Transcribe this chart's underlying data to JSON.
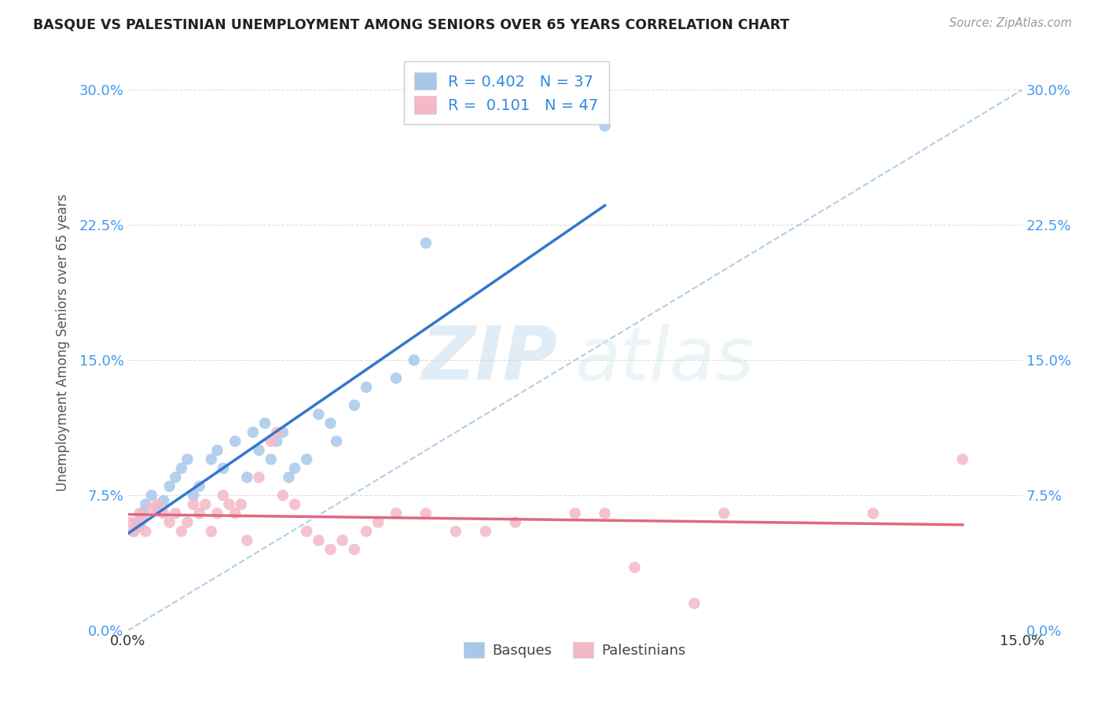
{
  "title": "BASQUE VS PALESTINIAN UNEMPLOYMENT AMONG SENIORS OVER 65 YEARS CORRELATION CHART",
  "source": "Source: ZipAtlas.com",
  "ylabel": "Unemployment Among Seniors over 65 years",
  "yticks": [
    "0.0%",
    "7.5%",
    "15.0%",
    "22.5%",
    "30.0%"
  ],
  "ytick_vals": [
    0.0,
    7.5,
    15.0,
    22.5,
    30.0
  ],
  "xlim": [
    0.0,
    15.0
  ],
  "ylim": [
    0.0,
    32.0
  ],
  "basque_color": "#a8c8ea",
  "palestinian_color": "#f4b8c8",
  "basque_line_color": "#3377cc",
  "palestinian_line_color": "#e06880",
  "diagonal_color": "#aac8e0",
  "R_basque": 0.402,
  "N_basque": 37,
  "R_palestinian": 0.101,
  "N_palestinian": 47,
  "basque_x": [
    0.1,
    0.15,
    0.2,
    0.25,
    0.3,
    0.4,
    0.5,
    0.6,
    0.7,
    0.8,
    0.9,
    1.0,
    1.1,
    1.2,
    1.4,
    1.5,
    1.6,
    1.8,
    2.0,
    2.1,
    2.2,
    2.3,
    2.4,
    2.5,
    2.6,
    2.7,
    2.8,
    3.0,
    3.2,
    3.4,
    3.5,
    3.8,
    4.0,
    4.5,
    4.8,
    5.0,
    8.0
  ],
  "basque_y": [
    5.5,
    6.0,
    5.8,
    6.5,
    7.0,
    7.5,
    6.8,
    7.2,
    8.0,
    8.5,
    9.0,
    9.5,
    7.5,
    8.0,
    9.5,
    10.0,
    9.0,
    10.5,
    8.5,
    11.0,
    10.0,
    11.5,
    9.5,
    10.5,
    11.0,
    8.5,
    9.0,
    9.5,
    12.0,
    11.5,
    10.5,
    12.5,
    13.5,
    14.0,
    15.0,
    21.5,
    28.0
  ],
  "palestinian_x": [
    0.05,
    0.1,
    0.15,
    0.2,
    0.25,
    0.3,
    0.4,
    0.5,
    0.6,
    0.7,
    0.8,
    0.9,
    1.0,
    1.1,
    1.2,
    1.3,
    1.4,
    1.5,
    1.6,
    1.7,
    1.8,
    1.9,
    2.0,
    2.2,
    2.4,
    2.5,
    2.6,
    2.8,
    3.0,
    3.2,
    3.4,
    3.6,
    3.8,
    4.0,
    4.2,
    4.5,
    5.0,
    5.5,
    6.0,
    6.5,
    7.5,
    8.0,
    8.5,
    9.5,
    10.0,
    12.5,
    14.0
  ],
  "palestinian_y": [
    6.0,
    5.5,
    5.8,
    6.5,
    6.2,
    5.5,
    6.8,
    7.0,
    6.5,
    6.0,
    6.5,
    5.5,
    6.0,
    7.0,
    6.5,
    7.0,
    5.5,
    6.5,
    7.5,
    7.0,
    6.5,
    7.0,
    5.0,
    8.5,
    10.5,
    11.0,
    7.5,
    7.0,
    5.5,
    5.0,
    4.5,
    5.0,
    4.5,
    5.5,
    6.0,
    6.5,
    6.5,
    5.5,
    5.5,
    6.0,
    6.5,
    6.5,
    3.5,
    1.5,
    6.5,
    6.5,
    9.5
  ],
  "watermark_zip": "ZIP",
  "watermark_atlas": "atlas",
  "background_color": "#ffffff",
  "grid_color": "#dddddd"
}
